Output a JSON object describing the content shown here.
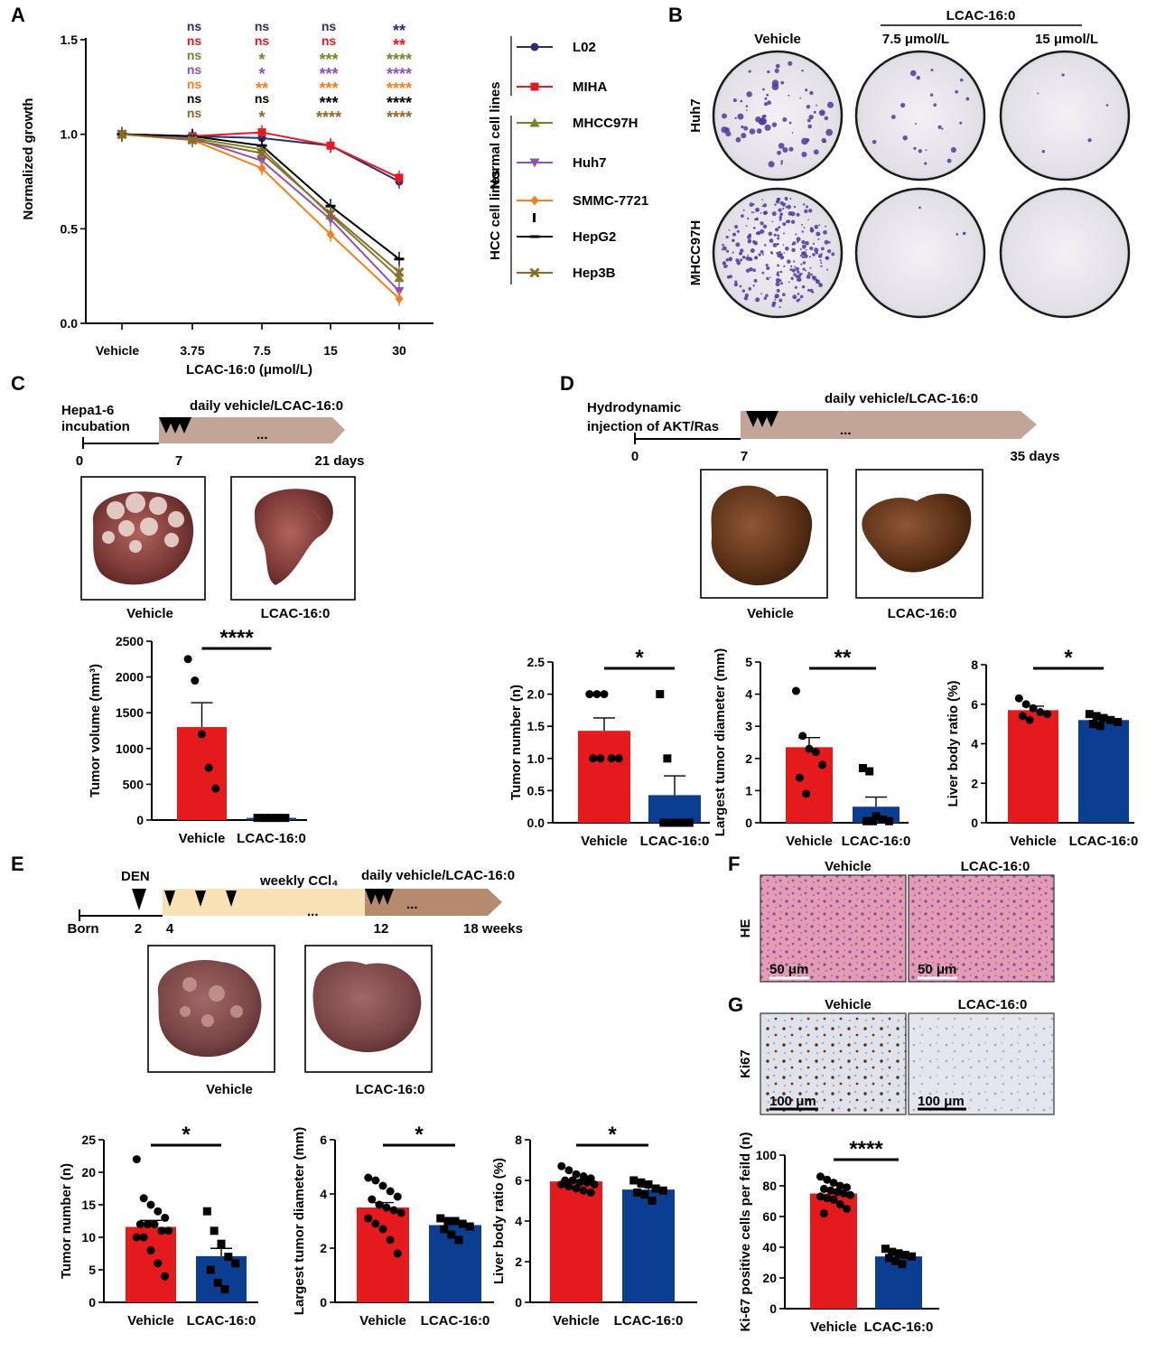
{
  "colors": {
    "red": "#e41a1c",
    "blue": "#0b3d91",
    "L02": "#2b2d6e",
    "MIHA": "#e21b22",
    "MHCC97H": "#76832b",
    "Huh7": "#8e52b6",
    "SMMC-7721": "#f47f20",
    "HepG2": "#000000",
    "Hep3B": "#8b6a2a",
    "timeline_tan": "#c2a596",
    "timeline_cream": "#f7e1b5",
    "timeline_brown": "#b58a6e"
  },
  "panels": {
    "A": {
      "label": "A"
    },
    "B": {
      "label": "B"
    },
    "C": {
      "label": "C"
    },
    "D": {
      "label": "D"
    },
    "E": {
      "label": "E"
    },
    "F": {
      "label": "F"
    },
    "G": {
      "label": "G"
    }
  },
  "panelA": {
    "legend_group_normal": "Normal cell lines",
    "legend_group_hcc": "HCC cell lines",
    "sig_rows": [
      {
        "line": "L02",
        "labels": [
          "ns",
          "ns",
          "ns",
          "**"
        ]
      },
      {
        "line": "MIHA",
        "labels": [
          "ns",
          "ns",
          "ns",
          "**"
        ]
      },
      {
        "line": "MHCC97H",
        "labels": [
          "ns",
          "*",
          "***",
          "****"
        ]
      },
      {
        "line": "Huh7",
        "labels": [
          "ns",
          "*",
          "***",
          "****"
        ]
      },
      {
        "line": "SMMC-7721",
        "labels": [
          "ns",
          "**",
          "***",
          "****"
        ]
      },
      {
        "line": "HepG2",
        "labels": [
          "ns",
          "ns",
          "***",
          "****"
        ]
      },
      {
        "line": "Hep3B",
        "labels": [
          "ns",
          "*",
          "****",
          "****"
        ]
      }
    ]
  },
  "chart_data": [
    {
      "id": "A",
      "type": "line",
      "title": "",
      "xlabel": "LCAC-16:0 (μmol/L)",
      "ylabel": "Normalized growth",
      "categories": [
        "Vehicle",
        "3.75",
        "7.5",
        "15",
        "30"
      ],
      "yticks": [
        "0.0",
        "0.5",
        "1.0",
        "1.5"
      ],
      "ylim": [
        0,
        1.5
      ],
      "series": [
        {
          "name": "L02",
          "color_key": "L02",
          "marker": "circle",
          "values": [
            1.0,
            0.99,
            0.98,
            0.94,
            0.75
          ]
        },
        {
          "name": "MIHA",
          "color_key": "MIHA",
          "marker": "square",
          "values": [
            1.0,
            0.99,
            1.01,
            0.94,
            0.77
          ]
        },
        {
          "name": "MHCC97H",
          "color_key": "MHCC97H",
          "marker": "triangle-up",
          "values": [
            1.0,
            0.98,
            0.92,
            0.57,
            0.24
          ]
        },
        {
          "name": "Huh7",
          "color_key": "Huh7",
          "marker": "triangle-down",
          "values": [
            1.0,
            0.98,
            0.86,
            0.55,
            0.17
          ]
        },
        {
          "name": "SMMC-7721",
          "color_key": "SMMC-7721",
          "marker": "diamond",
          "values": [
            1.0,
            0.97,
            0.82,
            0.47,
            0.13
          ]
        },
        {
          "name": "HepG2",
          "color_key": "HepG2",
          "marker": "dash",
          "values": [
            1.0,
            0.99,
            0.94,
            0.62,
            0.34
          ]
        },
        {
          "name": "Hep3B",
          "color_key": "Hep3B",
          "marker": "x",
          "values": [
            1.0,
            0.97,
            0.9,
            0.58,
            0.27
          ]
        }
      ],
      "legend": [
        "L02",
        "MIHA",
        "MHCC97H",
        "Huh7",
        "SMMC-7721",
        "HepG2",
        "Hep3B"
      ]
    },
    {
      "id": "C",
      "type": "bar",
      "categories": [
        "Vehicle",
        "LCAC-16:0"
      ],
      "ylabel": "Tumor volume (mm³)",
      "yticks": [
        "0",
        "500",
        "1000",
        "1500",
        "2000",
        "2500"
      ],
      "ylim": [
        0,
        2500
      ],
      "values": [
        1300,
        30
      ],
      "errors": [
        340,
        5
      ],
      "points": [
        [
          2250,
          1950,
          1200,
          730,
          440
        ],
        [
          30,
          30,
          30,
          30,
          30
        ]
      ],
      "significance": "****"
    },
    {
      "id": "D1",
      "type": "bar",
      "categories": [
        "Vehicle",
        "LCAC-16:0"
      ],
      "ylabel": "Tumor number (n)",
      "yticks": [
        "0.0",
        "0.5",
        "1.0",
        "1.5",
        "2.0",
        "2.5"
      ],
      "ylim": [
        0,
        2.5
      ],
      "values": [
        1.43,
        0.43
      ],
      "errors": [
        0.2,
        0.3
      ],
      "points": [
        [
          2,
          2,
          2,
          1,
          1,
          1,
          1
        ],
        [
          2,
          1,
          0,
          0,
          0,
          0,
          0
        ]
      ],
      "significance": "*"
    },
    {
      "id": "D2",
      "type": "bar",
      "categories": [
        "Vehicle",
        "LCAC-16:0"
      ],
      "ylabel": "Largest tumor diameter (mm)",
      "yticks": [
        "0",
        "1",
        "2",
        "3",
        "4",
        "5"
      ],
      "ylim": [
        0,
        5
      ],
      "values": [
        2.35,
        0.5
      ],
      "errors": [
        0.3,
        0.3
      ],
      "points": [
        [
          4.1,
          2.7,
          2.3,
          2.2,
          1.8,
          1.4,
          0.9
        ],
        [
          1.7,
          1.6,
          0.2,
          0.1,
          0.05,
          0.05,
          0.05
        ]
      ],
      "significance": "**"
    },
    {
      "id": "D3",
      "type": "bar",
      "categories": [
        "Vehicle",
        "LCAC-16:0"
      ],
      "ylabel": "Liver body ratio (%)",
      "yticks": [
        "0",
        "2",
        "4",
        "6",
        "8"
      ],
      "ylim": [
        0,
        8
      ],
      "values": [
        5.7,
        5.2
      ],
      "errors": [
        0.2,
        0.15
      ],
      "points": [
        [
          6.3,
          6.0,
          5.8,
          5.6,
          5.5,
          5.4,
          5.2
        ],
        [
          5.5,
          5.4,
          5.3,
          5.2,
          5.1,
          5.0,
          4.9
        ]
      ],
      "significance": "*"
    },
    {
      "id": "E1",
      "type": "bar",
      "categories": [
        "Vehicle",
        "LCAC-16:0"
      ],
      "ylabel": "Tumor number (n)",
      "yticks": [
        "0",
        "5",
        "10",
        "15",
        "20",
        "25"
      ],
      "ylim": [
        0,
        25
      ],
      "values": [
        11.6,
        7.1
      ],
      "errors": [
        1.0,
        1.2
      ],
      "points": [
        [
          22,
          16,
          15,
          14,
          13,
          12,
          12,
          12,
          11,
          11,
          10,
          10,
          8,
          6,
          4
        ],
        [
          14,
          11,
          9,
          7,
          6,
          5,
          3,
          2
        ]
      ],
      "significance": "*"
    },
    {
      "id": "E2",
      "type": "bar",
      "categories": [
        "Vehicle",
        "LCAC-16:0"
      ],
      "ylabel": "Largest tumor diameter (mm)",
      "yticks": [
        "0",
        "2",
        "4",
        "6"
      ],
      "ylim": [
        0,
        6
      ],
      "values": [
        3.5,
        2.85
      ],
      "errors": [
        0.18,
        0.1
      ],
      "points": [
        [
          4.6,
          4.5,
          4.3,
          4.1,
          3.9,
          3.8,
          3.6,
          3.5,
          3.4,
          3.3,
          3.1,
          2.9,
          2.7,
          2.3,
          1.8
        ],
        [
          3.1,
          3.0,
          3.0,
          2.9,
          2.8,
          2.7,
          2.5,
          2.3
        ]
      ],
      "significance": "*"
    },
    {
      "id": "E3",
      "type": "bar",
      "categories": [
        "Vehicle",
        "LCAC-16:0"
      ],
      "ylabel": "Liver body ratio (%)",
      "yticks": [
        "0",
        "2",
        "4",
        "6",
        "8"
      ],
      "ylim": [
        0,
        8
      ],
      "values": [
        5.95,
        5.55
      ],
      "errors": [
        0.08,
        0.12
      ],
      "points": [
        [
          6.7,
          6.5,
          6.3,
          6.2,
          6.1,
          6.0,
          6.0,
          5.9,
          5.9,
          5.8,
          5.8,
          5.7,
          5.6,
          5.5,
          5.4
        ],
        [
          6.0,
          5.9,
          5.8,
          5.6,
          5.5,
          5.4,
          5.3,
          5.0
        ]
      ],
      "significance": "*"
    },
    {
      "id": "G",
      "type": "bar",
      "categories": [
        "Vehicle",
        "LCAC-16:0"
      ],
      "ylabel": "Ki-67 positive cells per feild (n)",
      "yticks": [
        "0",
        "20",
        "40",
        "60",
        "80",
        "100"
      ],
      "ylim": [
        0,
        100
      ],
      "values": [
        75,
        34
      ],
      "errors": [
        2,
        1.5
      ],
      "points": [
        [
          86,
          84,
          82,
          80,
          79,
          78,
          77,
          76,
          75,
          74,
          73,
          72,
          71,
          68,
          65,
          62
        ],
        [
          39,
          37,
          36,
          35,
          34,
          33,
          31,
          29
        ]
      ],
      "significance": "****"
    }
  ],
  "panelB": {
    "header": "LCAC-16:0",
    "columns": [
      "Vehicle",
      "7.5 μmol/L",
      "15 μmol/L"
    ],
    "rows": [
      "Huh7",
      "MHCC97H"
    ]
  },
  "panelC": {
    "timeline_start": "Hepa1-6\nincubation",
    "timeline_bar": "daily vehicle/LCAC-16:0",
    "ellipsis": "...",
    "ticks": [
      "0",
      "7",
      "21 days"
    ],
    "photo_labels": [
      "Vehicle",
      "LCAC-16:0"
    ]
  },
  "panelD": {
    "timeline_start": "Hydrodynamic\ninjection of AKT/Ras",
    "timeline_bar": "daily vehicle/LCAC-16:0",
    "ellipsis": "...",
    "ticks": [
      "0",
      "7",
      "35 days"
    ],
    "photo_labels": [
      "Vehicle",
      "LCAC-16:0"
    ]
  },
  "panelE": {
    "den": "DEN",
    "weekly": "weekly CCl₄",
    "daily": "daily vehicle/LCAC-16:0",
    "ellipsis": "...",
    "ticks": [
      "Born",
      "2",
      "4",
      "12",
      "18 weeks"
    ],
    "photo_labels": [
      "Vehicle",
      "LCAC-16:0"
    ]
  },
  "panelF": {
    "row": "HE",
    "columns": [
      "Vehicle",
      "LCAC-16:0"
    ],
    "scale": "50 μm"
  },
  "panelG": {
    "row": "Ki67",
    "columns": [
      "Vehicle",
      "LCAC-16:0"
    ],
    "scale": "100 μm"
  }
}
